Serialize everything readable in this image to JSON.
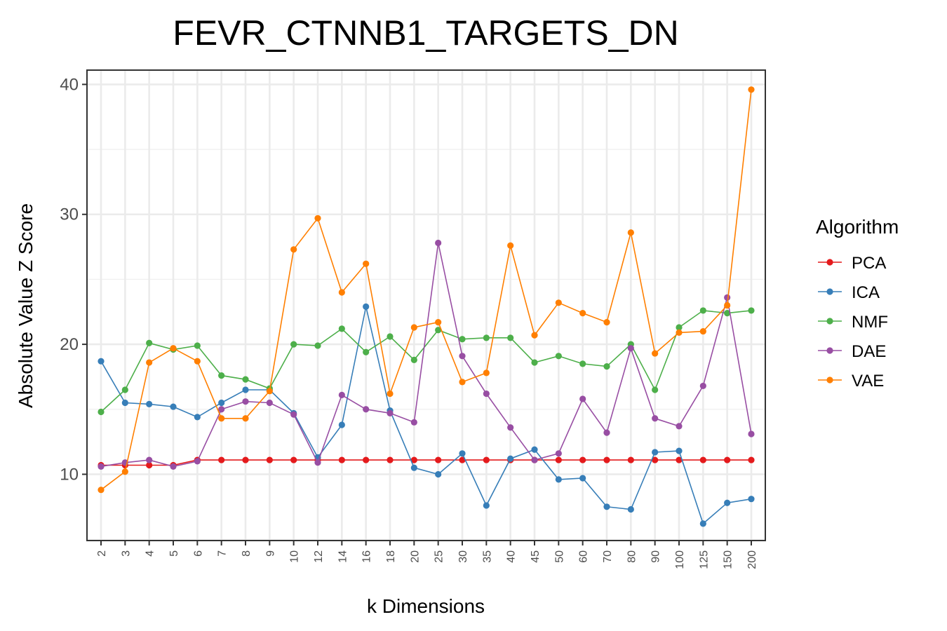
{
  "chart_data": {
    "type": "line",
    "title": "FEVR_CTNNB1_TARGETS_DN",
    "xlabel": "k Dimensions",
    "ylabel": "Absolute Value Z Score",
    "categories": [
      "2",
      "3",
      "4",
      "5",
      "6",
      "7",
      "8",
      "9",
      "10",
      "12",
      "14",
      "16",
      "18",
      "20",
      "25",
      "30",
      "35",
      "40",
      "45",
      "50",
      "60",
      "70",
      "80",
      "90",
      "100",
      "125",
      "150",
      "200"
    ],
    "ylim": [
      4.9,
      41.1
    ],
    "yticks": [
      10,
      20,
      30,
      40
    ],
    "ytick_labels": [
      "10",
      "20",
      "30",
      "40"
    ],
    "grid": true,
    "legend": {
      "title": "Algorithm",
      "position": "right"
    },
    "series": [
      {
        "name": "PCA",
        "color": "#e41a1c",
        "values": [
          10.7,
          10.7,
          10.7,
          10.7,
          11.1,
          11.1,
          11.1,
          11.1,
          11.1,
          11.1,
          11.1,
          11.1,
          11.1,
          11.1,
          11.1,
          11.1,
          11.1,
          11.1,
          11.1,
          11.1,
          11.1,
          11.1,
          11.1,
          11.1,
          11.1,
          11.1,
          11.1,
          11.1
        ]
      },
      {
        "name": "ICA",
        "color": "#377eb8",
        "values": [
          18.7,
          15.5,
          15.4,
          15.2,
          14.4,
          15.5,
          16.5,
          16.5,
          14.7,
          11.3,
          13.8,
          22.9,
          14.9,
          10.5,
          10.0,
          11.6,
          7.6,
          11.2,
          11.9,
          9.6,
          9.7,
          7.5,
          7.3,
          11.7,
          11.8,
          6.2,
          7.8,
          8.1
        ]
      },
      {
        "name": "NMF",
        "color": "#4daf4a",
        "values": [
          14.8,
          16.5,
          20.1,
          19.6,
          19.9,
          17.6,
          17.3,
          16.6,
          20.0,
          19.9,
          21.2,
          19.4,
          20.6,
          18.8,
          21.1,
          20.4,
          20.5,
          20.5,
          18.6,
          19.1,
          18.5,
          18.3,
          20.0,
          16.5,
          21.3,
          22.6,
          22.4,
          22.6
        ]
      },
      {
        "name": "DAE",
        "color": "#984ea3",
        "values": [
          10.6,
          10.9,
          11.1,
          10.6,
          11.0,
          15.0,
          15.6,
          15.5,
          14.6,
          10.9,
          16.1,
          15.0,
          14.7,
          14.0,
          27.8,
          19.1,
          16.2,
          13.6,
          11.1,
          11.6,
          15.8,
          13.2,
          19.7,
          14.3,
          13.7,
          16.8,
          23.6,
          13.1
        ]
      },
      {
        "name": "VAE",
        "color": "#ff7f00",
        "values": [
          8.8,
          10.2,
          18.6,
          19.7,
          18.7,
          14.3,
          14.3,
          16.4,
          27.3,
          29.7,
          24.0,
          26.2,
          16.2,
          21.3,
          21.7,
          17.1,
          17.8,
          27.6,
          20.7,
          23.2,
          22.4,
          21.7,
          28.6,
          19.3,
          20.9,
          21.0,
          23.0,
          39.6
        ]
      }
    ]
  }
}
